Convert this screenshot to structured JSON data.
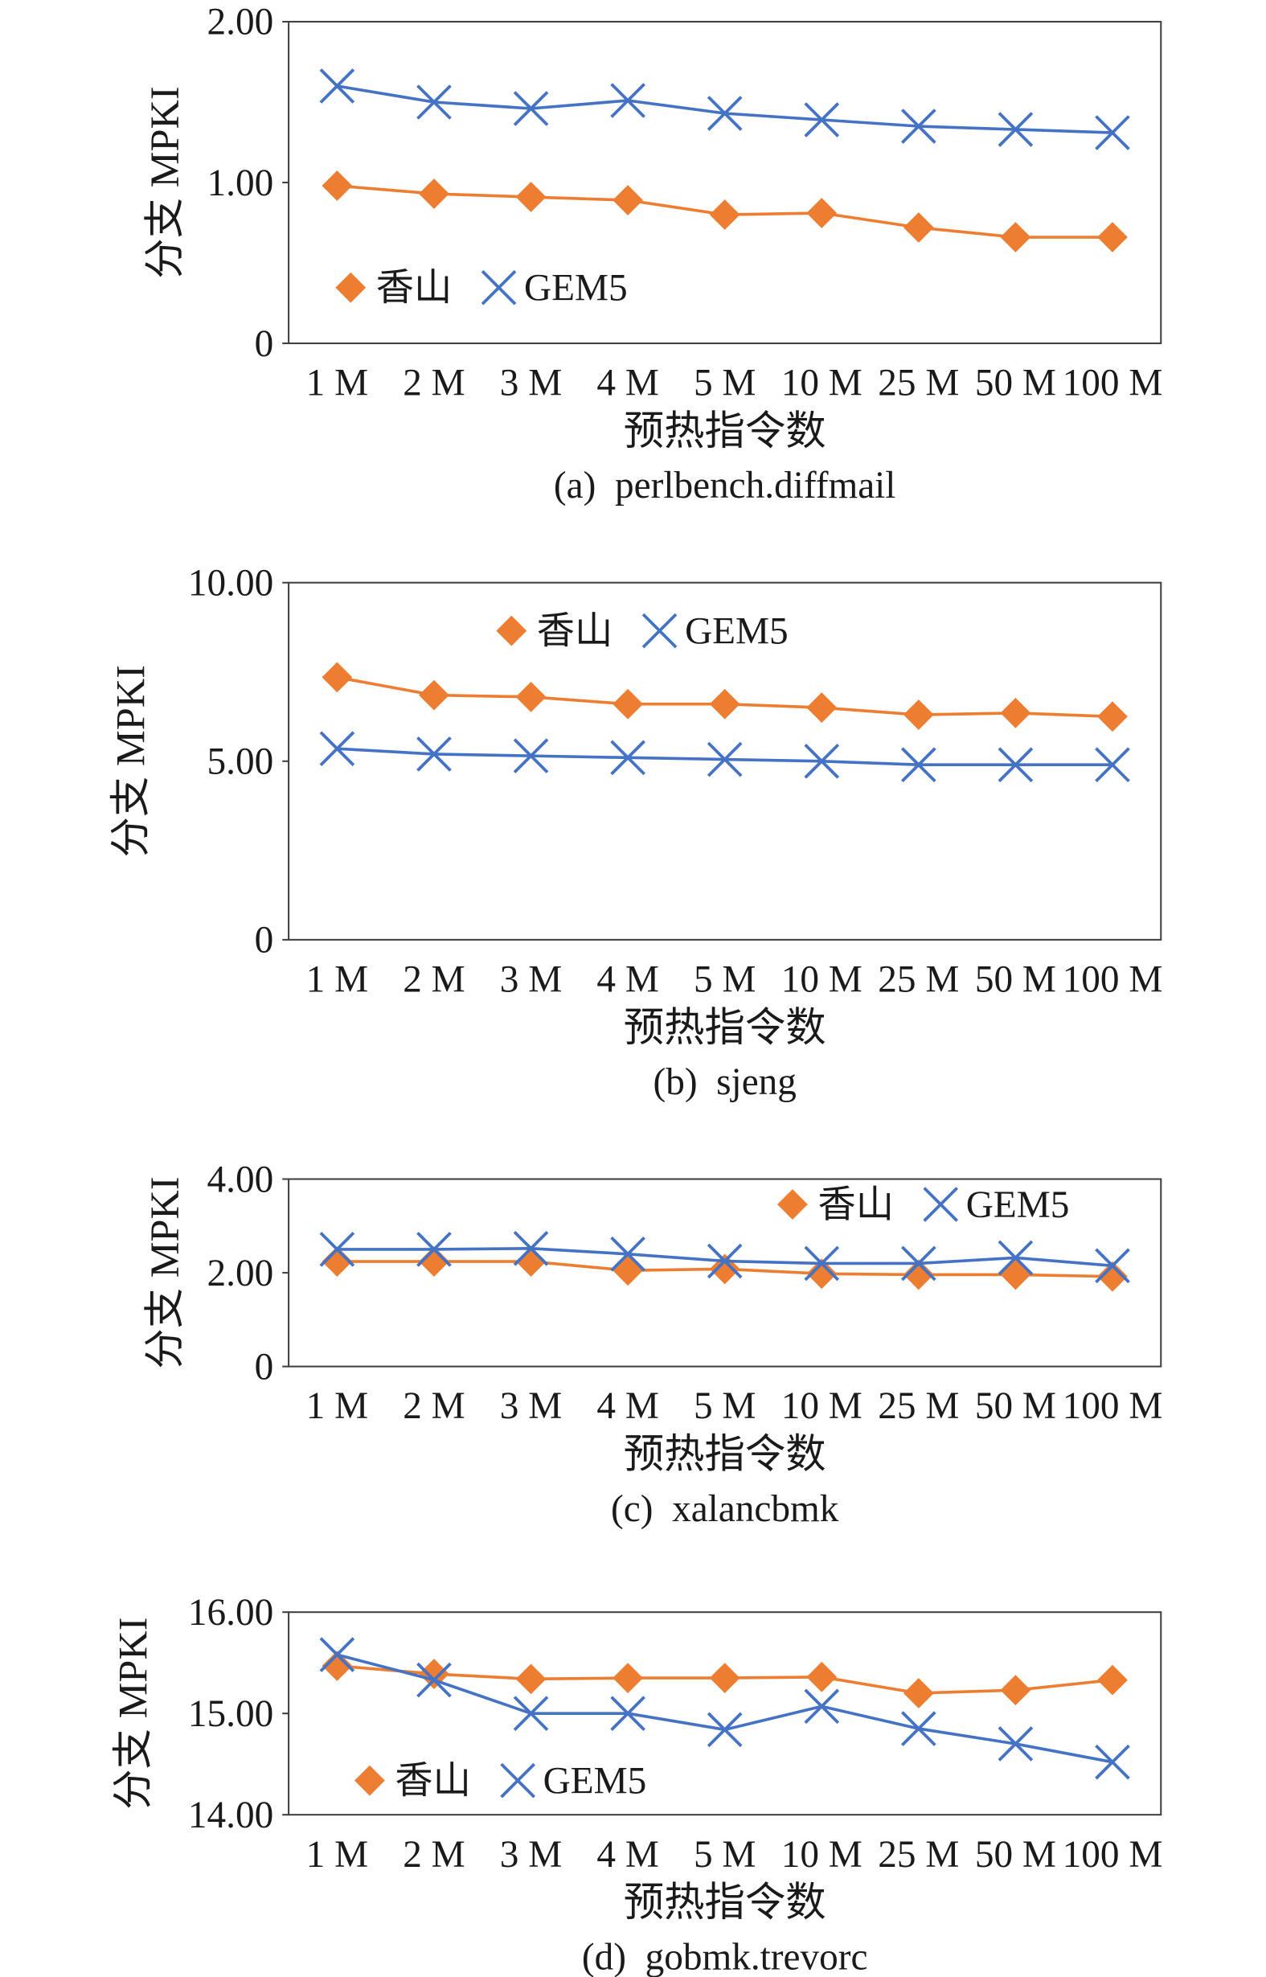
{
  "chart_data": [
    {
      "type": "line",
      "caption": "(a)  perlbench.diffmail",
      "xlabel": "预热指令数",
      "ylabel": "分支 MPKI",
      "categories": [
        "1 M",
        "2 M",
        "3 M",
        "4 M",
        "5 M",
        "10 M",
        "25 M",
        "50 M",
        "100 M"
      ],
      "ylim": [
        0,
        2
      ],
      "yticks": [
        0,
        1,
        2
      ],
      "ytick_labels": [
        "0",
        "1.00",
        "2.00"
      ],
      "grid": false,
      "legend": "bottom-left",
      "series": [
        {
          "name": "香山",
          "color": "#ED7D31",
          "marker": "diamond",
          "values": [
            0.98,
            0.93,
            0.91,
            0.89,
            0.8,
            0.81,
            0.72,
            0.66,
            0.66
          ]
        },
        {
          "name": "GEM5",
          "color": "#4472C4",
          "marker": "x",
          "values": [
            1.6,
            1.5,
            1.46,
            1.51,
            1.43,
            1.39,
            1.35,
            1.33,
            1.31
          ]
        }
      ]
    },
    {
      "type": "line",
      "caption": "(b)  sjeng",
      "xlabel": "预热指令数",
      "ylabel": "分支 MPKI",
      "categories": [
        "1 M",
        "2 M",
        "3 M",
        "4 M",
        "5 M",
        "10 M",
        "25 M",
        "50 M",
        "100 M"
      ],
      "ylim": [
        0,
        10
      ],
      "yticks": [
        0,
        5,
        10
      ],
      "ytick_labels": [
        "0",
        "5.00",
        "10.00"
      ],
      "grid": false,
      "legend": "top-center",
      "series": [
        {
          "name": "香山",
          "color": "#ED7D31",
          "marker": "diamond",
          "values": [
            7.35,
            6.85,
            6.8,
            6.6,
            6.6,
            6.5,
            6.3,
            6.35,
            6.25
          ]
        },
        {
          "name": "GEM5",
          "color": "#4472C4",
          "marker": "x",
          "values": [
            5.35,
            5.2,
            5.15,
            5.1,
            5.05,
            5.0,
            4.9,
            4.9,
            4.9
          ]
        }
      ]
    },
    {
      "type": "line",
      "caption": "(c)  xalancbmk",
      "xlabel": "预热指令数",
      "ylabel": "分支 MPKI",
      "categories": [
        "1 M",
        "2 M",
        "3 M",
        "4 M",
        "5 M",
        "10 M",
        "25 M",
        "50 M",
        "100 M"
      ],
      "ylim": [
        0,
        4
      ],
      "yticks": [
        0,
        2,
        4
      ],
      "ytick_labels": [
        "0",
        "2.00",
        "4.00"
      ],
      "grid": false,
      "legend": "top-right",
      "series": [
        {
          "name": "香山",
          "color": "#ED7D31",
          "marker": "diamond",
          "values": [
            2.24,
            2.24,
            2.24,
            2.05,
            2.08,
            1.98,
            1.96,
            1.96,
            1.92
          ]
        },
        {
          "name": "GEM5",
          "color": "#4472C4",
          "marker": "x",
          "values": [
            2.5,
            2.5,
            2.52,
            2.4,
            2.25,
            2.2,
            2.2,
            2.32,
            2.15
          ]
        }
      ]
    },
    {
      "type": "line",
      "caption": "(d)  gobmk.trevorc",
      "xlabel": "预热指令数",
      "ylabel": "分支 MPKI",
      "categories": [
        "1 M",
        "2 M",
        "3 M",
        "4 M",
        "5 M",
        "10 M",
        "25 M",
        "50 M",
        "100 M"
      ],
      "ylim": [
        14,
        16
      ],
      "yticks": [
        14,
        15,
        16
      ],
      "ytick_labels": [
        "14.00",
        "15.00",
        "16.00"
      ],
      "grid": false,
      "legend": "bottom-left",
      "series": [
        {
          "name": "香山",
          "color": "#ED7D31",
          "marker": "diamond",
          "values": [
            15.47,
            15.39,
            15.34,
            15.35,
            15.35,
            15.36,
            15.2,
            15.23,
            15.33
          ]
        },
        {
          "name": "GEM5",
          "color": "#4472C4",
          "marker": "x",
          "values": [
            15.58,
            15.33,
            15.0,
            15.0,
            14.84,
            15.07,
            14.85,
            14.7,
            14.52
          ]
        }
      ]
    }
  ]
}
